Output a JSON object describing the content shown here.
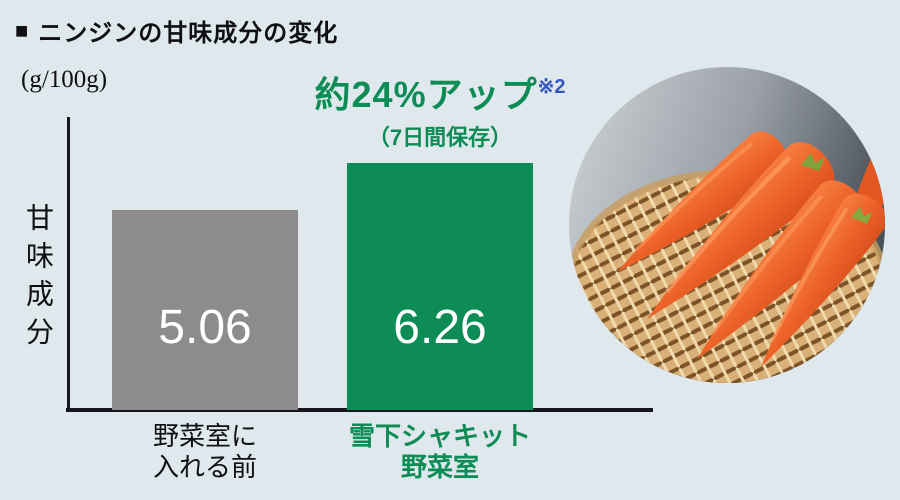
{
  "colors": {
    "background": "#dee8ed",
    "axis": "#16161e",
    "bar_gray": "#8c8c8c",
    "accent_green": "#0e8c56",
    "note_blue": "#3757c0",
    "value_text": "#ffffff"
  },
  "header": {
    "bullet": "■",
    "title": "ニンジンの甘味成分の変化"
  },
  "chart_data": {
    "type": "bar",
    "title": "ニンジンの甘味成分の変化",
    "unit": "(g/100g)",
    "ylabel": "甘味成分",
    "categories": [
      "野菜室に入れる前",
      "雪下シャキット野菜室"
    ],
    "categories_lines": [
      [
        "野菜室に",
        "入れる前"
      ],
      [
        "雪下シャキット",
        "野菜室"
      ]
    ],
    "values": [
      5.06,
      6.26
    ],
    "value_labels": [
      "5.06",
      "6.26"
    ],
    "bar_colors": [
      "#8c8c8c",
      "#0e8c56"
    ],
    "ylim": [
      0,
      6.26
    ],
    "grid": false,
    "legend": false,
    "annotation": {
      "text": "約24%アップ",
      "note_ref": "※2",
      "sub": "（7日間保存）"
    }
  },
  "photo": {
    "alt_name": "carrots-in-basket-photo"
  }
}
